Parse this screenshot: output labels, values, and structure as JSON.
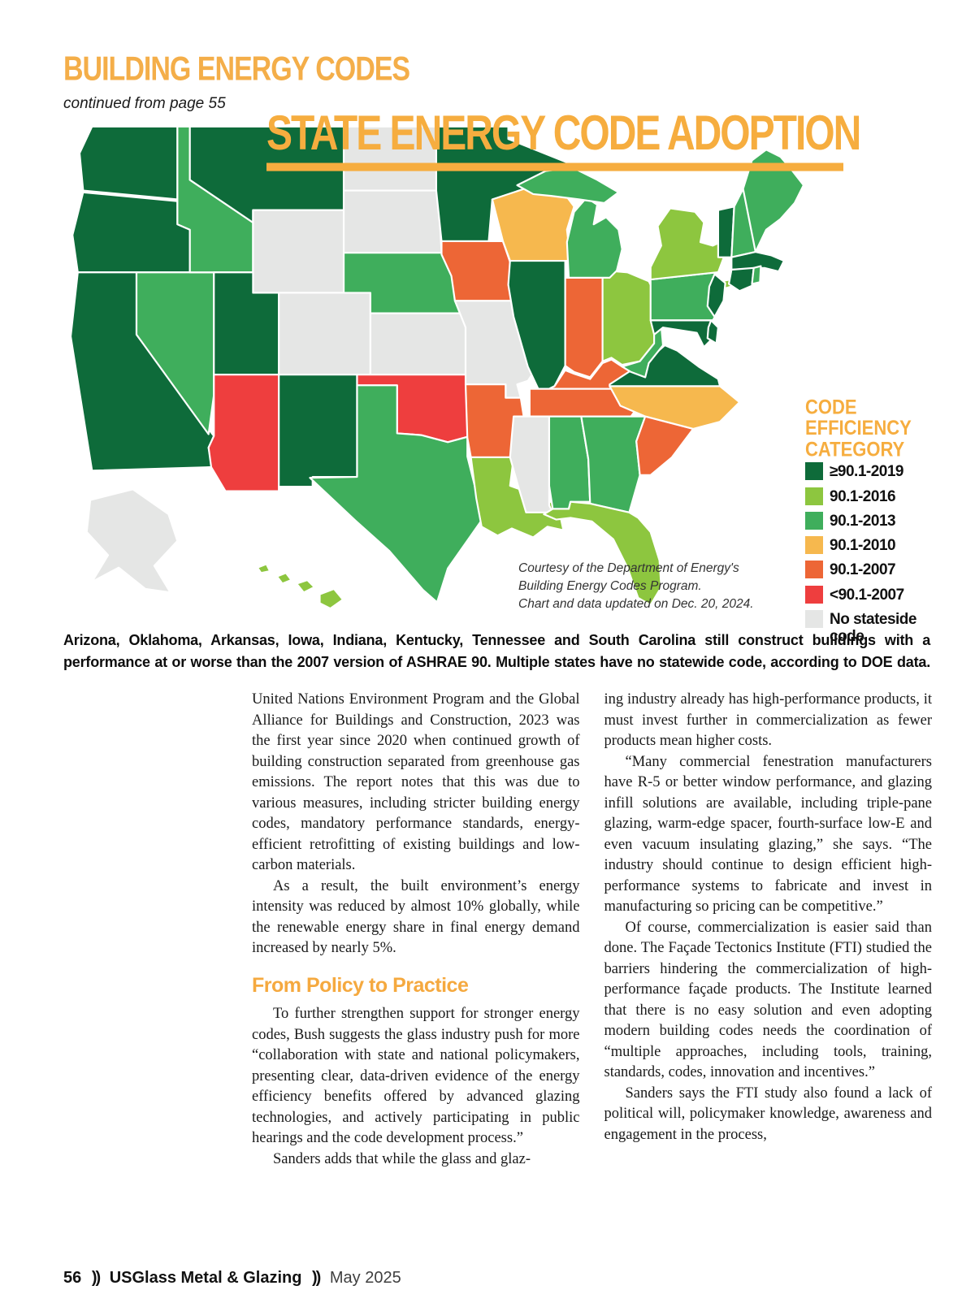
{
  "page": {
    "section_header": "BUILDING ENERGY CODES",
    "continued": "continued from page 55"
  },
  "map": {
    "title": "STATE ENERGY CODE ADOPTION",
    "legend_title": "CODE\nEFFICIENCY\nCATEGORY",
    "courtesy": "Courtesy of the Department of Energy's\nBuilding Energy Codes Program.\nChart and data updated on Dec. 20, 2024."
  },
  "caption": "Arizona, Oklahoma, Arkansas, Iowa, Indiana, Kentucky, Tennessee and South Carolina still construct buildings with a performance at or worse than the 2007 version of ASHRAE 90. Multiple states have no statewide code, according to DOE data.",
  "colors": {
    "accent_orange": "#f5ab42",
    "body_text": "#1a1a1a"
  },
  "chart_data": {
    "type": "choropleth-map",
    "title": "STATE ENERGY CODE ADOPTION",
    "legend_title": "CODE EFFICIENCY CATEGORY",
    "legend_position": "right",
    "categories": [
      {
        "label": "≥90.1-2019",
        "color": "#0e6b3a"
      },
      {
        "label": "90.1-2016",
        "color": "#8dc63f"
      },
      {
        "label": "90.1-2013",
        "color": "#3fae5c"
      },
      {
        "label": "90.1-2010",
        "color": "#f6b84e"
      },
      {
        "label": "90.1-2007",
        "color": "#ed6636"
      },
      {
        "label": "<90.1-2007",
        "color": "#ee3e3e"
      },
      {
        "label": "No stateside code",
        "color": "#e5e6e5"
      }
    ],
    "states": {
      "WA": "≥90.1-2019",
      "OR": "≥90.1-2019",
      "CA": "≥90.1-2019",
      "NV": "90.1-2013",
      "ID": "90.1-2013",
      "MT": "≥90.1-2019",
      "WY": "No stateside code",
      "UT": "≥90.1-2019",
      "CO": "No stateside code",
      "AZ": "<90.1-2007",
      "NM": "≥90.1-2019",
      "ND": "No stateside code",
      "SD": "No stateside code",
      "NE": "90.1-2013",
      "KS": "No stateside code",
      "OK": "<90.1-2007",
      "TX": "90.1-2013",
      "MN": "≥90.1-2019",
      "IA": "90.1-2007",
      "MO": "No stateside code",
      "AR": "90.1-2007",
      "LA": "90.1-2016",
      "WI": "90.1-2010",
      "IL": "≥90.1-2019",
      "IN": "90.1-2007",
      "OH": "90.1-2016",
      "MI": "90.1-2013",
      "KY": "90.1-2007",
      "TN": "90.1-2007",
      "MS": "No stateside code",
      "AL": "90.1-2013",
      "GA": "90.1-2013",
      "FL": "90.1-2016",
      "SC": "90.1-2007",
      "NC": "90.1-2010",
      "VA": "≥90.1-2019",
      "WV": "90.1-2013",
      "PA": "90.1-2013",
      "NY": "90.1-2016",
      "NJ": "≥90.1-2019",
      "MD": "≥90.1-2019",
      "DE": "≥90.1-2019",
      "VT": "≥90.1-2019",
      "NH": "90.1-2013",
      "ME": "90.1-2013",
      "MA": "≥90.1-2019",
      "CT": "≥90.1-2019",
      "RI": "90.1-2013",
      "AK": "No stateside code",
      "HI": "90.1-2016"
    }
  },
  "article": {
    "columns": [
      {
        "blocks": [
          {
            "type": "p",
            "indent": false,
            "text": "United Nations Environment Program and the Global Alliance for Buildings and Construction, 2023 was the first year since 2020 when continued growth of building construction separated from greenhouse gas emissions. The report notes that this was due to various measures, including stricter building energy codes, mandatory performance standards, energy-efficient retrofitting of existing buildings and low-carbon materials."
          },
          {
            "type": "p",
            "indent": true,
            "text": "As a result, the built environment’s energy intensity was reduced by almost 10% globally, while the renewable energy share in final energy demand increased by nearly 5%."
          },
          {
            "type": "h2",
            "text": "From Policy to Practice"
          },
          {
            "type": "p",
            "indent": true,
            "text": "To further strengthen support for stronger energy codes, Bush suggests the glass industry push for more “collaboration with state and national policymakers, presenting clear, data-driven evidence of the energy efficiency benefits offered by advanced glazing technologies, and actively participating in public hearings and the code development process.”"
          },
          {
            "type": "p",
            "indent": true,
            "text": "Sanders adds that while the glass and glaz-"
          }
        ]
      },
      {
        "blocks": [
          {
            "type": "p",
            "indent": false,
            "text": "ing industry already has high-performance products, it must invest further in commercialization as fewer products mean higher costs."
          },
          {
            "type": "p",
            "indent": true,
            "text": "“Many commercial fenestration manufacturers have R-5 or better window performance, and glazing infill solutions are available, including triple-pane glazing, warm-edge spacer, fourth-surface low-E and even vacuum insulating glazing,” she says. “The industry should continue to design efficient high-performance systems to fabricate and invest in manufacturing so pricing can be competitive.”"
          },
          {
            "type": "p",
            "indent": true,
            "text": "Of course, commercialization is easier said than done. The Façade Tectonics Institute (FTI) studied the barriers hindering the commercialization of high-performance façade products. The Institute learned that there is no easy solution and even adopting modern building codes needs the coordination of “multiple approaches, including tools, training, standards, codes, innovation and incentives.”"
          },
          {
            "type": "p",
            "indent": true,
            "text": "Sanders says the FTI study also found a lack of political will, policymaker knowledge, awareness and engagement in the process,"
          }
        ]
      }
    ]
  },
  "footer": {
    "page_number": "56",
    "separator": "))",
    "magazine": "USGlass Metal & Glazing",
    "issue": "May 2025"
  }
}
